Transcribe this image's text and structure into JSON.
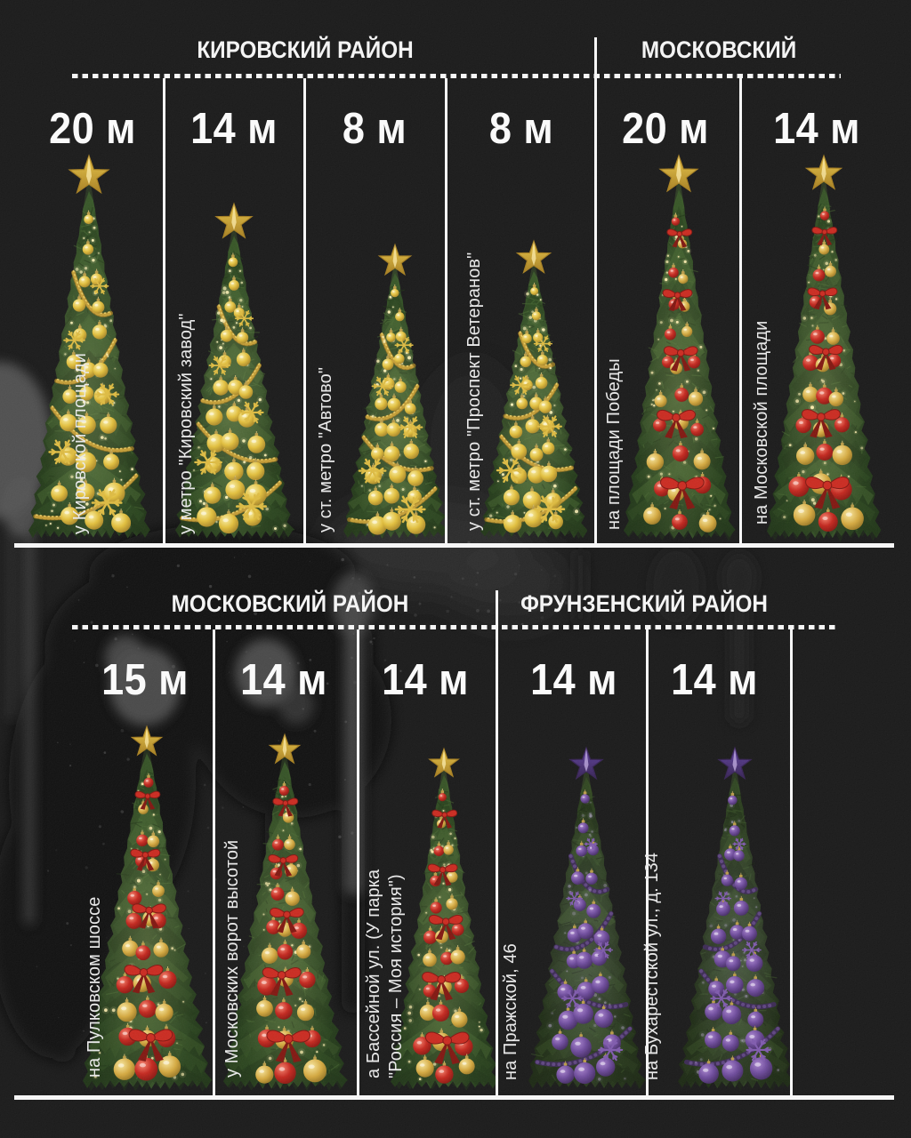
{
  "page": {
    "background_color": "#161616",
    "text_color": "#f2f2f2",
    "line_color": "#f6f6f6"
  },
  "rows": [
    {
      "sections": [
        {
          "title": "КИРОВСКИЙ РАЙОН"
        },
        {
          "title": "МОСКОВСКИЙ"
        }
      ],
      "columns": [
        {
          "height_label": "20 м",
          "height_m": 20,
          "district": "КИРОВСКИЙ РАЙОН",
          "scheme": "gold",
          "location_lines": [
            "у Кировской площади"
          ]
        },
        {
          "height_label": "14 м",
          "height_m": 14,
          "district": "КИРОВСКИЙ РАЙОН",
          "scheme": "gold",
          "location_lines": [
            "у метро \"Кировский завод\""
          ]
        },
        {
          "height_label": "8 м",
          "height_m": 8,
          "district": "КИРОВСКИЙ РАЙОН",
          "scheme": "gold",
          "location_lines": [
            "у ст. метро \"Автово\""
          ]
        },
        {
          "height_label": "8 м",
          "height_m": 8,
          "district": "КИРОВСКИЙ РАЙОН",
          "scheme": "gold",
          "location_lines": [
            "у ст. метро \"Проспект Ветеранов\""
          ]
        },
        {
          "height_label": "20 м",
          "height_m": 20,
          "district": "МОСКОВСКИЙ",
          "scheme": "red",
          "location_lines": [
            "на площади Победы"
          ]
        },
        {
          "height_label": "14 м",
          "height_m": 14,
          "district": "МОСКОВСКИЙ",
          "scheme": "red",
          "location_lines": [
            "на Московской площади"
          ]
        }
      ]
    },
    {
      "sections": [
        {
          "title": "МОСКОВСКИЙ РАЙОН"
        },
        {
          "title": "ФРУНЗЕНСКИЙ РАЙОН"
        }
      ],
      "columns": [
        {
          "height_label": "15 м",
          "height_m": 15,
          "district": "МОСКОВСКИЙ РАЙОН",
          "scheme": "red",
          "location_lines": [
            "на Пулковском шоссе"
          ]
        },
        {
          "height_label": "14 м",
          "height_m": 14,
          "district": "МОСКОВСКИЙ РАЙОН",
          "scheme": "red",
          "location_lines": [
            "у Московских ворот высотой"
          ]
        },
        {
          "height_label": "14 м",
          "height_m": 14,
          "district": "МОСКОВСКИЙ РАЙОН",
          "scheme": "red",
          "location_lines": [
            "а Бассейной ул. (У парка",
            "\"Россия – Моя история\")"
          ]
        },
        {
          "height_label": "14 м",
          "height_m": 14,
          "district": "ФРУНЗЕНСКИЙ РАЙОН",
          "scheme": "purple",
          "location_lines": [
            "на Пражской, 46"
          ]
        },
        {
          "height_label": "14 м",
          "height_m": 14,
          "district": "ФРУНЗЕНСКИЙ РАЙОН",
          "scheme": "purple",
          "location_lines": [
            "на Бухарестской ул., д. 134"
          ]
        }
      ]
    }
  ],
  "tree_schemes": {
    "gold": {
      "foliage_dark": "#1d3213",
      "foliage_mid": "#2f4d21",
      "foliage_light": "#47692f",
      "star": "#e8c445",
      "star_dark": "#a57d1e",
      "bauble_colors": [
        "#e0bd3a"
      ],
      "bauble_hi": "#f9eda0",
      "bauble_sh": "#8a671a",
      "accent": "snowflake",
      "accent_color": "#dcb93f",
      "garland": "#c9a139",
      "lights": "#fff3b8"
    },
    "red": {
      "foliage_dark": "#1c3113",
      "foliage_mid": "#2e4b20",
      "foliage_light": "#44652d",
      "star": "#e8c445",
      "star_dark": "#a57d1e",
      "bauble_colors": [
        "#c1241b",
        "#d2a63c"
      ],
      "bauble_hi": "#f4806a",
      "bauble_sh": "#6e0d07",
      "accent": "bow",
      "accent_color": "#c8271d",
      "garland": "",
      "lights": "#ffeeb0"
    },
    "purple": {
      "foliage_dark": "#18240f",
      "foliage_mid": "#283c1b",
      "foliage_light": "#3a5526",
      "star": "#5e3f9e",
      "star_dark": "#342052",
      "bauble_colors": [
        "#6b4899"
      ],
      "bauble_hi": "#a681cc",
      "bauble_sh": "#2e1a47",
      "accent": "sparkle",
      "accent_color": "#7d58ab",
      "garland": "#3a2754",
      "lights": "#cdbbe8"
    }
  }
}
